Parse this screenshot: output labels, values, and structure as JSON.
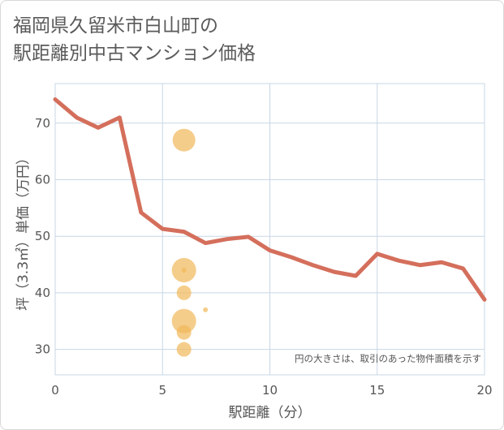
{
  "title_line1": "福岡県久留米市白山町の",
  "title_line2": "駅距離別中古マンション価格",
  "chart_data": {
    "type": "line",
    "xlabel": "駅距離（分）",
    "ylabel": "坪（3.3㎡）単価（万円）",
    "xlim": [
      0,
      20
    ],
    "ylim": [
      25.5,
      77
    ],
    "x_ticks": [
      "0",
      "5",
      "10",
      "15",
      "20"
    ],
    "y_ticks": [
      "30",
      "40",
      "50",
      "60",
      "70"
    ],
    "note": "円の大きさは、取引のあった物件面積を示す",
    "grid": true,
    "colors": {
      "line": "#d46f5c",
      "bubble": "#f1b85a",
      "grid": "#c8d7e6"
    },
    "series": [
      {
        "x": [
          0,
          1,
          2,
          3,
          4,
          5,
          6,
          7,
          8,
          9,
          10,
          11,
          12,
          13,
          14,
          15,
          16,
          17,
          18,
          19,
          20
        ],
        "values": [
          74.2,
          71.0,
          69.2,
          71.0,
          54.2,
          51.3,
          50.8,
          48.8,
          49.5,
          49.9,
          47.5,
          46.3,
          44.9,
          43.7,
          43.0,
          46.9,
          45.7,
          44.9,
          45.4,
          44.3,
          38.8
        ]
      }
    ],
    "bubbles": [
      {
        "x": 6,
        "y": 67.0,
        "size": 14
      },
      {
        "x": 6,
        "y": 44.0,
        "size": 15
      },
      {
        "x": 6,
        "y": 44.0,
        "size": 3
      },
      {
        "x": 6,
        "y": 40.0,
        "size": 9
      },
      {
        "x": 6,
        "y": 35.0,
        "size": 15
      },
      {
        "x": 6,
        "y": 33.0,
        "size": 9
      },
      {
        "x": 6,
        "y": 30.0,
        "size": 9
      },
      {
        "x": 7,
        "y": 37.0,
        "size": 3
      }
    ]
  }
}
